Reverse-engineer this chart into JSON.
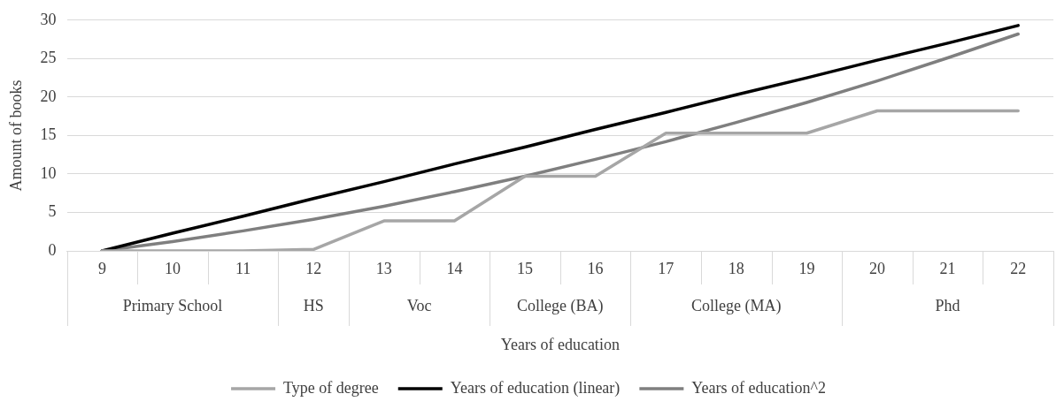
{
  "chart_data": {
    "type": "line",
    "xlabel": "Years of education",
    "ylabel": "Amount of books",
    "categories": [
      "9",
      "10",
      "11",
      "12",
      "13",
      "14",
      "15",
      "16",
      "17",
      "18",
      "19",
      "20",
      "21",
      "22"
    ],
    "series": [
      {
        "name": "Type of degree",
        "color": "#a6a6a6",
        "values": [
          0,
          0,
          0,
          0.2,
          3.9,
          3.9,
          9.7,
          9.7,
          15.3,
          15.3,
          15.3,
          18.2,
          18.2,
          18.2
        ]
      },
      {
        "name": "Years of education (linear)",
        "color": "#000000",
        "values": [
          0,
          2.3,
          4.5,
          6.8,
          9.0,
          11.3,
          13.5,
          15.8,
          18.0,
          20.3,
          22.5,
          24.8,
          27.0,
          29.3
        ]
      },
      {
        "name": "Years of education^2",
        "color": "#7f7f7f",
        "values": [
          0,
          1.2,
          2.6,
          4.1,
          5.8,
          7.7,
          9.7,
          11.9,
          14.2,
          16.7,
          19.3,
          22.1,
          25.1,
          28.2
        ]
      }
    ],
    "annotations": [
      "Primary School",
      "HS",
      "Voc",
      "College (BA)",
      "College (MA)",
      "Phd"
    ],
    "ylim": [
      0,
      30
    ],
    "yticks": [
      0,
      5,
      10,
      15,
      20,
      25,
      30
    ],
    "grid": "y",
    "legend": "bottom",
    "marker": "none",
    "line_style": "solid"
  }
}
